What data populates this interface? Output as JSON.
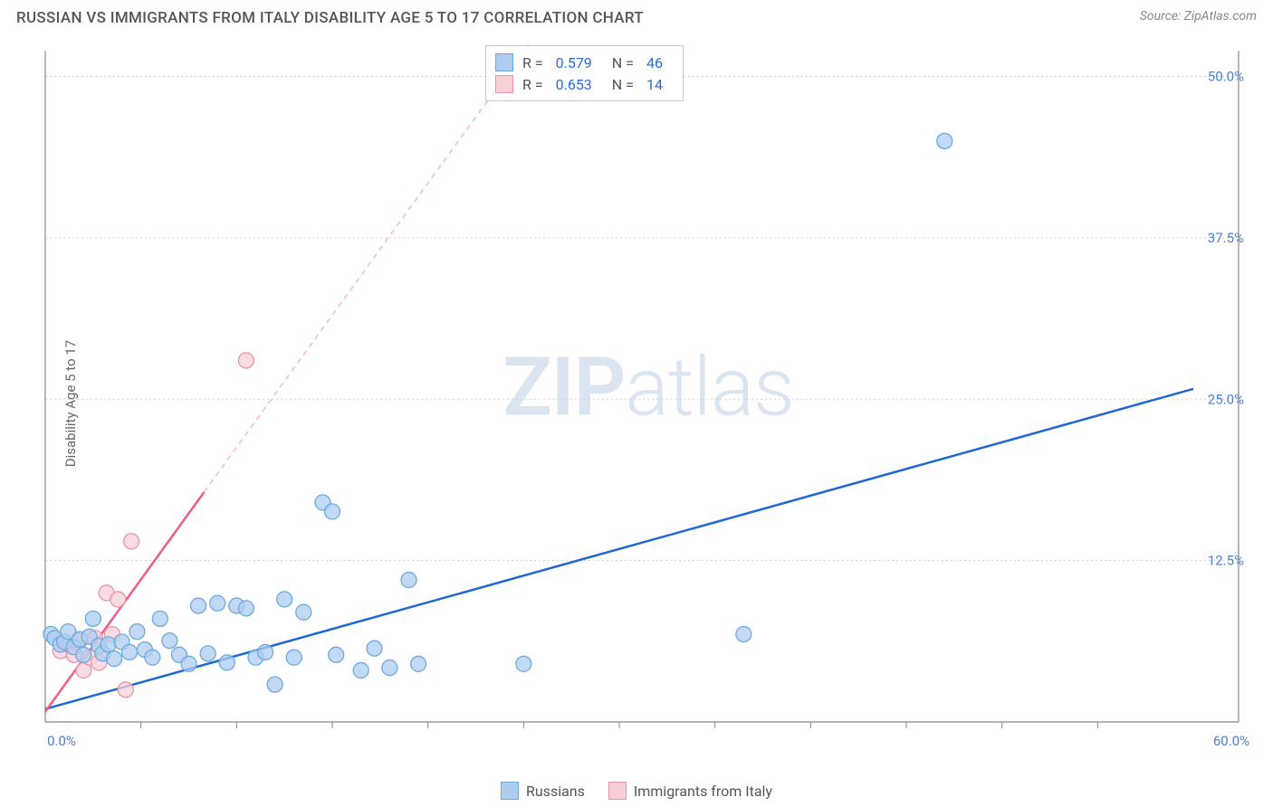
{
  "title": "RUSSIAN VS IMMIGRANTS FROM ITALY DISABILITY AGE 5 TO 17 CORRELATION CHART",
  "source_label": "Source: ",
  "source_name": "ZipAtlas.com",
  "y_axis_label": "Disability Age 5 to 17",
  "watermark": {
    "bold": "ZIP",
    "light": "atlas"
  },
  "chart": {
    "type": "scatter-with-trend",
    "background_color": "#ffffff",
    "grid_color": "#d0d0d0",
    "axis_color": "#888888",
    "xlim": [
      0,
      60
    ],
    "ylim": [
      0,
      52
    ],
    "x_ticks": [
      0,
      60
    ],
    "x_tick_labels": [
      "0.0%",
      "60.0%"
    ],
    "y_ticks": [
      12.5,
      25.0,
      37.5,
      50.0
    ],
    "y_tick_labels": [
      "12.5%",
      "25.0%",
      "37.5%",
      "50.0%"
    ],
    "x_minor_ticks": [
      5,
      10,
      15,
      20,
      25,
      30,
      35,
      40,
      45,
      50,
      55
    ],
    "point_radius": 8.5,
    "trend_line_width": 2.5,
    "label_fontsize": 15,
    "tick_color": "#4a7fd8"
  },
  "series": [
    {
      "name": "Russians",
      "color_fill": "#aeccf0",
      "color_stroke": "#6faadd",
      "trend_color": "#1f67d2",
      "trend_dash_color": "#a4c2ed",
      "R": "0.579",
      "N": "46",
      "trend": {
        "x1": 0,
        "y1": 1.0,
        "x2_solid": 60,
        "y2_solid": 25.8,
        "x2_dash": 60,
        "y2_dash": 25.8
      },
      "points": [
        [
          0.3,
          6.8
        ],
        [
          0.5,
          6.5
        ],
        [
          0.8,
          6.0
        ],
        [
          1.0,
          6.2
        ],
        [
          1.2,
          7.0
        ],
        [
          1.5,
          5.8
        ],
        [
          1.8,
          6.4
        ],
        [
          2.0,
          5.2
        ],
        [
          2.3,
          6.6
        ],
        [
          2.5,
          8.0
        ],
        [
          2.8,
          5.9
        ],
        [
          3.0,
          5.3
        ],
        [
          3.3,
          6.0
        ],
        [
          3.6,
          4.9
        ],
        [
          4.0,
          6.2
        ],
        [
          4.4,
          5.4
        ],
        [
          4.8,
          7.0
        ],
        [
          5.2,
          5.6
        ],
        [
          5.6,
          5.0
        ],
        [
          6.0,
          8.0
        ],
        [
          6.5,
          6.3
        ],
        [
          7.0,
          5.2
        ],
        [
          7.5,
          4.5
        ],
        [
          8.0,
          9.0
        ],
        [
          8.5,
          5.3
        ],
        [
          9.0,
          9.2
        ],
        [
          9.5,
          4.6
        ],
        [
          10.0,
          9.0
        ],
        [
          10.5,
          8.8
        ],
        [
          11.0,
          5.0
        ],
        [
          11.5,
          5.4
        ],
        [
          12.0,
          2.9
        ],
        [
          12.5,
          9.5
        ],
        [
          13.0,
          5.0
        ],
        [
          13.5,
          8.5
        ],
        [
          14.5,
          17.0
        ],
        [
          15.0,
          16.3
        ],
        [
          15.2,
          5.2
        ],
        [
          16.5,
          4.0
        ],
        [
          17.2,
          5.7
        ],
        [
          18.0,
          4.2
        ],
        [
          19.0,
          11.0
        ],
        [
          19.5,
          4.5
        ],
        [
          25.0,
          4.5
        ],
        [
          36.5,
          6.8
        ],
        [
          47.0,
          45.0
        ]
      ]
    },
    {
      "name": "Immigrants from Italy",
      "color_fill": "#f9d0d8",
      "color_stroke": "#e995a8",
      "trend_color": "#ef5d85",
      "trend_dash_color": "#f4b9c8",
      "R": "0.653",
      "N": "14",
      "trend": {
        "x1": 0,
        "y1": 0.8,
        "x2_solid": 8.3,
        "y2_solid": 17.8,
        "x2_dash": 25.5,
        "y2_dash": 53
      },
      "points": [
        [
          0.8,
          5.5
        ],
        [
          1.2,
          6.0
        ],
        [
          1.5,
          5.2
        ],
        [
          1.8,
          6.3
        ],
        [
          2.0,
          4.0
        ],
        [
          2.3,
          5.0
        ],
        [
          2.6,
          6.5
        ],
        [
          2.8,
          4.6
        ],
        [
          3.2,
          10.0
        ],
        [
          3.5,
          6.8
        ],
        [
          3.8,
          9.5
        ],
        [
          4.2,
          2.5
        ],
        [
          4.5,
          14.0
        ],
        [
          10.5,
          28.0
        ]
      ]
    }
  ],
  "legend_top": {
    "rows": [
      {
        "swatch": "blue",
        "r_label": "R =",
        "r_val": "0.579",
        "n_label": "N =",
        "n_val": "46"
      },
      {
        "swatch": "pink",
        "r_label": "R =",
        "r_val": "0.653",
        "n_label": "N =",
        "n_val": "14"
      }
    ]
  },
  "legend_bottom": {
    "items": [
      {
        "swatch": "blue",
        "label": "Russians"
      },
      {
        "swatch": "pink",
        "label": "Immigrants from Italy"
      }
    ]
  }
}
